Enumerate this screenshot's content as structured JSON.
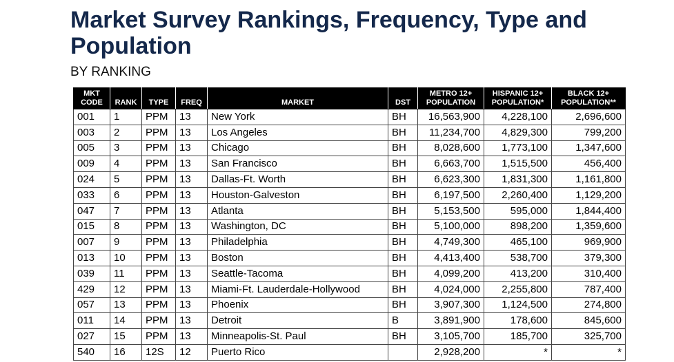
{
  "title": "Market Survey Rankings, Frequency, Type and Population",
  "subtitle": "BY RANKING",
  "table": {
    "headers": {
      "code_line1": "MKT",
      "code_line2": "CODE",
      "rank": "RANK",
      "type": "TYPE",
      "freq": "FREQ",
      "market": "MARKET",
      "dst": "DST",
      "metro_line1": "METRO 12+",
      "metro_line2": "POPULATION",
      "hispanic_line1": "HISPANIC 12+",
      "hispanic_line2": "POPULATION*",
      "black_line1": "BLACK 12+",
      "black_line2": "POPULATION**"
    },
    "rows": [
      {
        "code": "001",
        "rank": "1",
        "type": "PPM",
        "freq": "13",
        "market": "New York",
        "dst": "BH",
        "metro": "16,563,900",
        "hispanic": "4,228,100",
        "black": "2,696,600"
      },
      {
        "code": "003",
        "rank": "2",
        "type": "PPM",
        "freq": "13",
        "market": "Los Angeles",
        "dst": "BH",
        "metro": "11,234,700",
        "hispanic": "4,829,300",
        "black": "799,200"
      },
      {
        "code": "005",
        "rank": "3",
        "type": "PPM",
        "freq": "13",
        "market": "Chicago",
        "dst": "BH",
        "metro": "8,028,600",
        "hispanic": "1,773,100",
        "black": "1,347,600"
      },
      {
        "code": "009",
        "rank": "4",
        "type": "PPM",
        "freq": "13",
        "market": "San Francisco",
        "dst": "BH",
        "metro": "6,663,700",
        "hispanic": "1,515,500",
        "black": "456,400"
      },
      {
        "code": "024",
        "rank": "5",
        "type": "PPM",
        "freq": "13",
        "market": "Dallas-Ft. Worth",
        "dst": "BH",
        "metro": "6,623,300",
        "hispanic": "1,831,300",
        "black": "1,161,800"
      },
      {
        "code": "033",
        "rank": "6",
        "type": "PPM",
        "freq": "13",
        "market": "Houston-Galveston",
        "dst": "BH",
        "metro": "6,197,500",
        "hispanic": "2,260,400",
        "black": "1,129,200"
      },
      {
        "code": "047",
        "rank": "7",
        "type": "PPM",
        "freq": "13",
        "market": "Atlanta",
        "dst": "BH",
        "metro": "5,153,500",
        "hispanic": "595,000",
        "black": "1,844,400"
      },
      {
        "code": "015",
        "rank": "8",
        "type": "PPM",
        "freq": "13",
        "market": "Washington, DC",
        "dst": "BH",
        "metro": "5,100,000",
        "hispanic": "898,200",
        "black": "1,359,600"
      },
      {
        "code": "007",
        "rank": "9",
        "type": "PPM",
        "freq": "13",
        "market": "Philadelphia",
        "dst": "BH",
        "metro": "4,749,300",
        "hispanic": "465,100",
        "black": "969,900"
      },
      {
        "code": "013",
        "rank": "10",
        "type": "PPM",
        "freq": "13",
        "market": "Boston",
        "dst": "BH",
        "metro": "4,413,400",
        "hispanic": "538,700",
        "black": "379,300"
      },
      {
        "code": "039",
        "rank": "11",
        "type": "PPM",
        "freq": "13",
        "market": "Seattle-Tacoma",
        "dst": "BH",
        "metro": "4,099,200",
        "hispanic": "413,200",
        "black": "310,400"
      },
      {
        "code": "429",
        "rank": "12",
        "type": "PPM",
        "freq": "13",
        "market": "Miami-Ft. Lauderdale-Hollywood",
        "dst": "BH",
        "metro": "4,024,000",
        "hispanic": "2,255,800",
        "black": "787,400"
      },
      {
        "code": "057",
        "rank": "13",
        "type": "PPM",
        "freq": "13",
        "market": "Phoenix",
        "dst": "BH",
        "metro": "3,907,300",
        "hispanic": "1,124,500",
        "black": "274,800"
      },
      {
        "code": "011",
        "rank": "14",
        "type": "PPM",
        "freq": "13",
        "market": "Detroit",
        "dst": "B",
        "metro": "3,891,900",
        "hispanic": "178,600",
        "black": "845,600"
      },
      {
        "code": "027",
        "rank": "15",
        "type": "PPM",
        "freq": "13",
        "market": "Minneapolis-St. Paul",
        "dst": "BH",
        "metro": "3,105,700",
        "hispanic": "185,700",
        "black": "325,700"
      },
      {
        "code": "540",
        "rank": "16",
        "type": "12S",
        "freq": "12",
        "market": "Puerto Rico",
        "dst": "",
        "metro": "2,928,200",
        "hispanic": "*",
        "black": "*"
      }
    ]
  }
}
